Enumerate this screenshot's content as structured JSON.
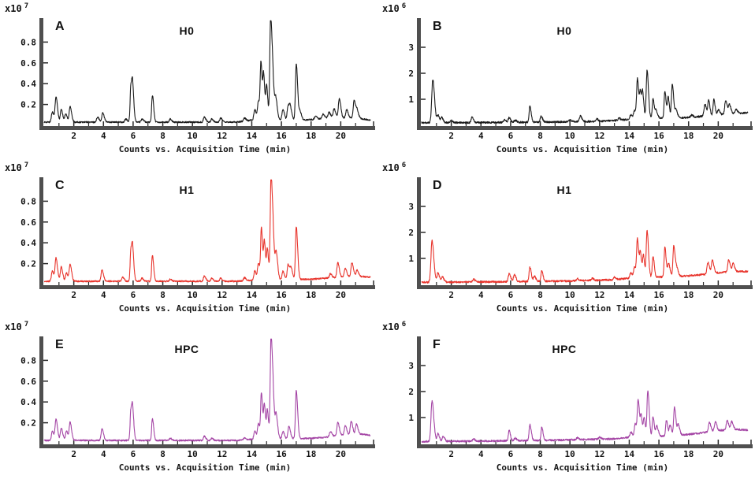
{
  "figure": {
    "background": "#ffffff",
    "axis_color": "#4f4f4f",
    "tick_color": "#141414",
    "xlabel": "Counts vs. Acquisition Time (min)"
  },
  "chart_data": [
    {
      "type": "line",
      "panel_label": "A",
      "title": "H0",
      "scale_base": "x10",
      "scale_exp": "7",
      "scale_label": "x10^7",
      "color": "#1a1a1a",
      "xlabel": "Counts vs. Acquisition Time (min)",
      "xlim": [
        0,
        22
      ],
      "ylim": [
        0,
        1.0
      ],
      "yticks": [
        0.2,
        0.4,
        0.6,
        0.8
      ],
      "ytick_labels": [
        "0.2",
        "0.4",
        "0.6",
        "0.8"
      ],
      "xticks": [
        2,
        4,
        6,
        8,
        10,
        12,
        14,
        16,
        18,
        20
      ],
      "xminor": [
        1,
        3,
        5,
        7,
        9,
        11,
        13,
        15,
        17,
        19,
        21
      ],
      "noise": 0.007,
      "baseline": [
        [
          0,
          0.03
        ],
        [
          13,
          0.03
        ],
        [
          14,
          0.05
        ],
        [
          17.5,
          0.05
        ],
        [
          18.5,
          0.06
        ],
        [
          19.5,
          0.08
        ],
        [
          20.3,
          0.07
        ],
        [
          21,
          0.07
        ],
        [
          22,
          0.05
        ]
      ],
      "peaks": [
        [
          0.55,
          0.1
        ],
        [
          0.8,
          0.24,
          0.06
        ],
        [
          1.15,
          0.12
        ],
        [
          1.45,
          0.08
        ],
        [
          1.75,
          0.15
        ],
        [
          3.6,
          0.05
        ],
        [
          3.95,
          0.09
        ],
        [
          5.5,
          0.03
        ],
        [
          5.85,
          0.36,
          0.05
        ],
        [
          5.97,
          0.28,
          0.05
        ],
        [
          6.6,
          0.03
        ],
        [
          7.3,
          0.26,
          0.05
        ],
        [
          8.5,
          0.03
        ],
        [
          10.8,
          0.05
        ],
        [
          11.3,
          0.03
        ],
        [
          11.9,
          0.04
        ],
        [
          13.5,
          0.03
        ],
        [
          14.2,
          0.1
        ],
        [
          14.45,
          0.18
        ],
        [
          14.62,
          0.53,
          0.05
        ],
        [
          14.8,
          0.41,
          0.05
        ],
        [
          15.0,
          0.32,
          0.05
        ],
        [
          15.27,
          0.98,
          0.055
        ],
        [
          15.42,
          0.3
        ],
        [
          15.62,
          0.19
        ],
        [
          16.1,
          0.1
        ],
        [
          16.45,
          0.14
        ],
        [
          16.6,
          0.1
        ],
        [
          17.0,
          0.54,
          0.055
        ],
        [
          17.25,
          0.08
        ],
        [
          18.3,
          0.03
        ],
        [
          18.8,
          0.04
        ],
        [
          19.2,
          0.05
        ],
        [
          19.55,
          0.08
        ],
        [
          19.9,
          0.18
        ],
        [
          20.4,
          0.08
        ],
        [
          20.9,
          0.17
        ],
        [
          21.1,
          0.07
        ]
      ]
    },
    {
      "type": "line",
      "panel_label": "B",
      "title": "H0",
      "scale_base": "x10",
      "scale_exp": "6",
      "scale_label": "x10^6",
      "color": "#1a1a1a",
      "xlabel": "Counts vs. Acquisition Time (min)",
      "xlim": [
        0,
        22
      ],
      "ylim": [
        0,
        4
      ],
      "yticks": [
        1,
        2,
        3
      ],
      "ytick_labels": [
        "1",
        "2",
        "3"
      ],
      "xticks": [
        2,
        4,
        6,
        8,
        10,
        12,
        14,
        16,
        18,
        20
      ],
      "xminor": [
        1,
        3,
        5,
        7,
        9,
        11,
        13,
        15,
        17,
        19,
        21
      ],
      "noise": 0.035,
      "baseline": [
        [
          0,
          0.1
        ],
        [
          3,
          0.1
        ],
        [
          8,
          0.12
        ],
        [
          12,
          0.15
        ],
        [
          13.5,
          0.2
        ],
        [
          14.2,
          0.25
        ],
        [
          17,
          0.28
        ],
        [
          18,
          0.3
        ],
        [
          19,
          0.35
        ],
        [
          20,
          0.4
        ],
        [
          21,
          0.45
        ],
        [
          22,
          0.48
        ]
      ],
      "peaks": [
        [
          0.75,
          1.65,
          0.07
        ],
        [
          1.1,
          0.28
        ],
        [
          1.35,
          0.2
        ],
        [
          2.0,
          0.08
        ],
        [
          3.4,
          0.22
        ],
        [
          5.6,
          0.1
        ],
        [
          5.9,
          0.18
        ],
        [
          6.3,
          0.08
        ],
        [
          7.3,
          0.62,
          0.05
        ],
        [
          8.05,
          0.22
        ],
        [
          10.0,
          0.06
        ],
        [
          10.7,
          0.22
        ],
        [
          11.8,
          0.1
        ],
        [
          13.3,
          0.08
        ],
        [
          14.1,
          0.15
        ],
        [
          14.35,
          0.3
        ],
        [
          14.55,
          1.5,
          0.055
        ],
        [
          14.75,
          0.95,
          0.05
        ],
        [
          14.9,
          0.9,
          0.05
        ],
        [
          15.2,
          1.85,
          0.055
        ],
        [
          15.6,
          0.75,
          0.05
        ],
        [
          15.8,
          0.3
        ],
        [
          16.4,
          1.05,
          0.05
        ],
        [
          16.62,
          0.8,
          0.05
        ],
        [
          16.9,
          1.3,
          0.055
        ],
        [
          17.15,
          0.3
        ],
        [
          18.2,
          0.08
        ],
        [
          19.1,
          0.45
        ],
        [
          19.35,
          0.6,
          0.05
        ],
        [
          19.7,
          0.6,
          0.05
        ],
        [
          20.0,
          0.2
        ],
        [
          20.5,
          0.55
        ],
        [
          20.75,
          0.35
        ],
        [
          21.2,
          0.15
        ]
      ]
    },
    {
      "type": "line",
      "panel_label": "C",
      "title": "H1",
      "scale_base": "x10",
      "scale_exp": "7",
      "scale_label": "x10^7",
      "color": "#e8342c",
      "xlabel": "Counts vs. Acquisition Time (min)",
      "xlim": [
        0,
        22
      ],
      "ylim": [
        0,
        1.0
      ],
      "yticks": [
        0.2,
        0.4,
        0.6,
        0.8
      ],
      "ytick_labels": [
        "0.2",
        "0.4",
        "0.6",
        "0.8"
      ],
      "xticks": [
        2,
        4,
        6,
        8,
        10,
        12,
        14,
        16,
        18,
        20
      ],
      "xminor": [
        1,
        3,
        5,
        7,
        9,
        11,
        13,
        15,
        17,
        19,
        21
      ],
      "noise": 0.007,
      "baseline": [
        [
          0,
          0.03
        ],
        [
          13,
          0.03
        ],
        [
          14,
          0.04
        ],
        [
          18,
          0.05
        ],
        [
          19,
          0.06
        ],
        [
          20,
          0.07
        ],
        [
          21,
          0.08
        ],
        [
          22,
          0.07
        ]
      ],
      "peaks": [
        [
          0.55,
          0.1
        ],
        [
          0.8,
          0.22,
          0.06
        ],
        [
          1.15,
          0.14
        ],
        [
          1.5,
          0.08
        ],
        [
          1.75,
          0.16
        ],
        [
          3.9,
          0.11
        ],
        [
          5.3,
          0.04
        ],
        [
          5.85,
          0.31,
          0.05
        ],
        [
          5.97,
          0.25,
          0.05
        ],
        [
          6.6,
          0.03
        ],
        [
          7.3,
          0.25,
          0.05
        ],
        [
          8.5,
          0.02
        ],
        [
          10.8,
          0.05
        ],
        [
          11.3,
          0.03
        ],
        [
          11.9,
          0.03
        ],
        [
          13.5,
          0.03
        ],
        [
          14.2,
          0.09
        ],
        [
          14.45,
          0.16
        ],
        [
          14.65,
          0.49,
          0.05
        ],
        [
          14.85,
          0.36,
          0.05
        ],
        [
          15.05,
          0.29,
          0.05
        ],
        [
          15.3,
          1.0,
          0.055
        ],
        [
          15.45,
          0.28
        ],
        [
          15.65,
          0.24
        ],
        [
          16.1,
          0.08
        ],
        [
          16.45,
          0.15
        ],
        [
          16.65,
          0.1
        ],
        [
          17.0,
          0.51,
          0.055
        ],
        [
          19.3,
          0.04
        ],
        [
          19.8,
          0.14
        ],
        [
          20.3,
          0.08
        ],
        [
          20.75,
          0.13
        ],
        [
          21.1,
          0.06
        ]
      ]
    },
    {
      "type": "line",
      "panel_label": "D",
      "title": "H1",
      "scale_base": "x10",
      "scale_exp": "6",
      "scale_label": "x10^6",
      "color": "#e8342c",
      "xlabel": "Counts vs. Acquisition Time (min)",
      "xlim": [
        0,
        22
      ],
      "ylim": [
        0,
        4
      ],
      "yticks": [
        1,
        2,
        3
      ],
      "ytick_labels": [
        "1",
        "2",
        "3"
      ],
      "xticks": [
        2,
        4,
        6,
        8,
        10,
        12,
        14,
        16,
        18,
        20
      ],
      "xminor": [
        1,
        3,
        5,
        7,
        9,
        11,
        13,
        15,
        17,
        19,
        21
      ],
      "noise": 0.035,
      "baseline": [
        [
          0,
          0.08
        ],
        [
          5,
          0.1
        ],
        [
          10,
          0.13
        ],
        [
          13,
          0.18
        ],
        [
          14.2,
          0.25
        ],
        [
          17,
          0.3
        ],
        [
          18,
          0.33
        ],
        [
          19,
          0.38
        ],
        [
          20,
          0.45
        ],
        [
          21,
          0.5
        ],
        [
          22,
          0.5
        ]
      ],
      "peaks": [
        [
          0.7,
          1.6,
          0.07
        ],
        [
          1.1,
          0.35
        ],
        [
          1.4,
          0.2
        ],
        [
          3.5,
          0.1
        ],
        [
          5.9,
          0.3
        ],
        [
          6.25,
          0.28
        ],
        [
          7.3,
          0.55,
          0.055
        ],
        [
          7.6,
          0.2
        ],
        [
          8.1,
          0.4,
          0.05
        ],
        [
          10.5,
          0.08
        ],
        [
          11.5,
          0.08
        ],
        [
          13.0,
          0.1
        ],
        [
          14.1,
          0.2
        ],
        [
          14.35,
          0.4
        ],
        [
          14.55,
          1.45,
          0.055
        ],
        [
          14.75,
          0.9,
          0.05
        ],
        [
          14.95,
          0.85,
          0.05
        ],
        [
          15.2,
          1.8,
          0.055
        ],
        [
          15.6,
          0.8,
          0.05
        ],
        [
          16.4,
          1.15,
          0.05
        ],
        [
          16.65,
          0.5
        ],
        [
          17.0,
          1.2,
          0.055
        ],
        [
          17.2,
          0.3
        ],
        [
          19.3,
          0.45
        ],
        [
          19.6,
          0.5
        ],
        [
          20.7,
          0.45
        ],
        [
          21.0,
          0.3
        ]
      ]
    },
    {
      "type": "line",
      "panel_label": "E",
      "title": "HPC",
      "scale_base": "x10",
      "scale_exp": "7",
      "scale_label": "x10^7",
      "color": "#a445a5",
      "xlabel": "Counts vs. Acquisition Time (min)",
      "xlim": [
        0,
        22
      ],
      "ylim": [
        0,
        1.0
      ],
      "yticks": [
        0.2,
        0.4,
        0.6,
        0.8
      ],
      "ytick_labels": [
        "0.2",
        "0.4",
        "0.6",
        "0.8"
      ],
      "xticks": [
        2,
        4,
        6,
        8,
        10,
        12,
        14,
        16,
        18,
        20
      ],
      "xminor": [
        1,
        3,
        5,
        7,
        9,
        11,
        13,
        15,
        17,
        19,
        21
      ],
      "noise": 0.007,
      "baseline": [
        [
          0,
          0.03
        ],
        [
          13,
          0.03
        ],
        [
          14,
          0.04
        ],
        [
          18,
          0.05
        ],
        [
          19,
          0.06
        ],
        [
          20,
          0.08
        ],
        [
          21.5,
          0.09
        ],
        [
          22,
          0.08
        ]
      ],
      "peaks": [
        [
          0.55,
          0.09
        ],
        [
          0.8,
          0.2,
          0.06
        ],
        [
          1.15,
          0.12
        ],
        [
          1.5,
          0.09
        ],
        [
          1.75,
          0.17
        ],
        [
          3.9,
          0.11
        ],
        [
          5.85,
          0.3,
          0.05
        ],
        [
          5.97,
          0.24,
          0.05
        ],
        [
          7.3,
          0.21,
          0.05
        ],
        [
          8.5,
          0.02
        ],
        [
          10.8,
          0.04
        ],
        [
          11.3,
          0.02
        ],
        [
          13.5,
          0.02
        ],
        [
          14.2,
          0.08
        ],
        [
          14.45,
          0.15
        ],
        [
          14.65,
          0.43,
          0.05
        ],
        [
          14.85,
          0.32,
          0.05
        ],
        [
          15.05,
          0.27,
          0.05
        ],
        [
          15.3,
          0.99,
          0.055
        ],
        [
          15.45,
          0.27
        ],
        [
          15.65,
          0.21
        ],
        [
          16.1,
          0.07
        ],
        [
          16.5,
          0.12
        ],
        [
          17.0,
          0.46,
          0.055
        ],
        [
          19.3,
          0.05
        ],
        [
          19.8,
          0.13
        ],
        [
          20.3,
          0.09
        ],
        [
          20.7,
          0.13
        ],
        [
          21.05,
          0.1
        ]
      ]
    },
    {
      "type": "line",
      "panel_label": "F",
      "title": "HPC",
      "scale_base": "x10",
      "scale_exp": "6",
      "scale_label": "x10^6",
      "color": "#a445a5",
      "xlabel": "Counts vs. Acquisition Time (min)",
      "xlim": [
        0,
        22
      ],
      "ylim": [
        0,
        4
      ],
      "yticks": [
        1,
        2,
        3
      ],
      "ytick_labels": [
        "1",
        "2",
        "3"
      ],
      "xticks": [
        2,
        4,
        6,
        8,
        10,
        12,
        14,
        16,
        18,
        20
      ],
      "xminor": [
        1,
        3,
        5,
        7,
        9,
        11,
        13,
        15,
        17,
        19,
        21
      ],
      "noise": 0.035,
      "baseline": [
        [
          0,
          0.08
        ],
        [
          5,
          0.1
        ],
        [
          10,
          0.14
        ],
        [
          13,
          0.18
        ],
        [
          14.2,
          0.25
        ],
        [
          17,
          0.3
        ],
        [
          18,
          0.35
        ],
        [
          19,
          0.42
        ],
        [
          20,
          0.5
        ],
        [
          21,
          0.55
        ],
        [
          22,
          0.52
        ]
      ],
      "peaks": [
        [
          0.7,
          1.55,
          0.07
        ],
        [
          1.1,
          0.3
        ],
        [
          1.45,
          0.2
        ],
        [
          3.5,
          0.08
        ],
        [
          5.9,
          0.4,
          0.05
        ],
        [
          6.3,
          0.1
        ],
        [
          7.3,
          0.6,
          0.055
        ],
        [
          8.1,
          0.5,
          0.05
        ],
        [
          10.5,
          0.08
        ],
        [
          12.0,
          0.08
        ],
        [
          14.1,
          0.2
        ],
        [
          14.4,
          0.5
        ],
        [
          14.6,
          1.35,
          0.055
        ],
        [
          14.8,
          0.75,
          0.05
        ],
        [
          15.0,
          0.7,
          0.05
        ],
        [
          15.25,
          1.75,
          0.055
        ],
        [
          15.6,
          0.75,
          0.05
        ],
        [
          15.85,
          0.4
        ],
        [
          16.5,
          0.6,
          0.05
        ],
        [
          16.75,
          0.4
        ],
        [
          17.05,
          1.1,
          0.055
        ],
        [
          17.3,
          0.4
        ],
        [
          19.4,
          0.35
        ],
        [
          19.8,
          0.35
        ],
        [
          20.6,
          0.35
        ],
        [
          20.9,
          0.3
        ]
      ]
    }
  ]
}
